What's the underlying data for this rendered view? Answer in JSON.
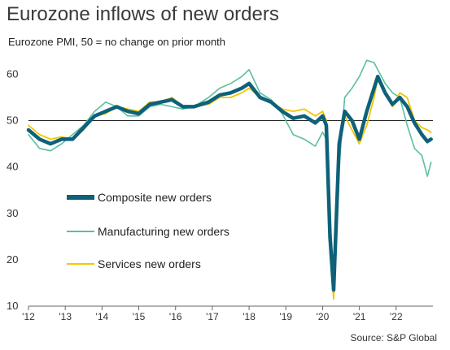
{
  "header": {
    "title": "Eurozone inflows of new orders",
    "subtitle": "Eurozone PMI, 50 = no change on prior month",
    "source": "Source: S&P Global"
  },
  "chart_data": {
    "type": "line",
    "title": "Eurozone inflows of new orders",
    "subtitle": "Eurozone PMI, 50 = no change on prior month",
    "xlabel": "",
    "ylabel": "",
    "ylim": [
      10,
      62
    ],
    "yticks": [
      10,
      20,
      30,
      40,
      50,
      60
    ],
    "xticks": [
      "'12",
      "'13",
      "'14",
      "'15",
      "'16",
      "'17",
      "'18",
      "'19",
      "'20",
      "'21",
      "'22"
    ],
    "reference_line": 50,
    "grid": false,
    "legend_position": "inside-left",
    "series": [
      {
        "name": "Composite new orders",
        "color": "#0e6179",
        "points": [
          [
            2012.0,
            48.0
          ],
          [
            2012.3,
            46.0
          ],
          [
            2012.6,
            45.0
          ],
          [
            2012.9,
            46.0
          ],
          [
            2013.2,
            46.0
          ],
          [
            2013.5,
            48.5
          ],
          [
            2013.8,
            51.0
          ],
          [
            2014.1,
            52.0
          ],
          [
            2014.4,
            53.0
          ],
          [
            2014.7,
            52.0
          ],
          [
            2015.0,
            51.5
          ],
          [
            2015.3,
            53.5
          ],
          [
            2015.6,
            54.0
          ],
          [
            2015.9,
            54.5
          ],
          [
            2016.2,
            53.0
          ],
          [
            2016.5,
            53.0
          ],
          [
            2016.9,
            54.0
          ],
          [
            2017.2,
            55.5
          ],
          [
            2017.5,
            56.0
          ],
          [
            2017.8,
            57.0
          ],
          [
            2018.0,
            58.0
          ],
          [
            2018.3,
            55.0
          ],
          [
            2018.6,
            54.0
          ],
          [
            2018.9,
            52.0
          ],
          [
            2019.2,
            50.5
          ],
          [
            2019.5,
            51.0
          ],
          [
            2019.8,
            49.5
          ],
          [
            2020.0,
            51.0
          ],
          [
            2020.1,
            49.0
          ],
          [
            2020.2,
            25.0
          ],
          [
            2020.3,
            13.5
          ],
          [
            2020.45,
            45.0
          ],
          [
            2020.6,
            52.0
          ],
          [
            2020.8,
            50.0
          ],
          [
            2021.0,
            46.0
          ],
          [
            2021.2,
            52.0
          ],
          [
            2021.4,
            57.0
          ],
          [
            2021.5,
            59.5
          ],
          [
            2021.7,
            56.0
          ],
          [
            2021.9,
            53.5
          ],
          [
            2022.1,
            55.0
          ],
          [
            2022.3,
            53.0
          ],
          [
            2022.5,
            49.5
          ],
          [
            2022.7,
            47.0
          ],
          [
            2022.85,
            45.5
          ],
          [
            2022.95,
            46.0
          ]
        ]
      },
      {
        "name": "Manufacturing new orders",
        "color": "#5bbf9f",
        "points": [
          [
            2012.0,
            47.0
          ],
          [
            2012.3,
            44.0
          ],
          [
            2012.6,
            43.5
          ],
          [
            2012.9,
            45.0
          ],
          [
            2013.2,
            47.0
          ],
          [
            2013.5,
            49.0
          ],
          [
            2013.8,
            52.0
          ],
          [
            2014.1,
            54.0
          ],
          [
            2014.4,
            53.0
          ],
          [
            2014.7,
            51.0
          ],
          [
            2015.0,
            51.0
          ],
          [
            2015.3,
            53.0
          ],
          [
            2015.6,
            53.5
          ],
          [
            2015.9,
            53.0
          ],
          [
            2016.2,
            52.5
          ],
          [
            2016.5,
            53.0
          ],
          [
            2016.9,
            55.0
          ],
          [
            2017.2,
            57.0
          ],
          [
            2017.5,
            58.0
          ],
          [
            2017.8,
            59.5
          ],
          [
            2018.0,
            61.0
          ],
          [
            2018.3,
            56.0
          ],
          [
            2018.6,
            54.5
          ],
          [
            2018.9,
            51.5
          ],
          [
            2019.2,
            47.0
          ],
          [
            2019.5,
            46.0
          ],
          [
            2019.8,
            44.5
          ],
          [
            2020.0,
            47.5
          ],
          [
            2020.1,
            46.0
          ],
          [
            2020.2,
            30.0
          ],
          [
            2020.3,
            15.0
          ],
          [
            2020.45,
            40.0
          ],
          [
            2020.6,
            55.0
          ],
          [
            2020.8,
            57.0
          ],
          [
            2021.0,
            59.5
          ],
          [
            2021.2,
            63.0
          ],
          [
            2021.4,
            62.5
          ],
          [
            2021.5,
            61.0
          ],
          [
            2021.7,
            58.0
          ],
          [
            2021.9,
            56.0
          ],
          [
            2022.1,
            55.0
          ],
          [
            2022.3,
            49.0
          ],
          [
            2022.5,
            44.0
          ],
          [
            2022.7,
            42.5
          ],
          [
            2022.85,
            38.0
          ],
          [
            2022.95,
            41.0
          ]
        ]
      },
      {
        "name": "Services new orders",
        "color": "#f5c400",
        "points": [
          [
            2012.0,
            49.0
          ],
          [
            2012.3,
            47.0
          ],
          [
            2012.6,
            46.0
          ],
          [
            2012.9,
            46.5
          ],
          [
            2013.2,
            46.0
          ],
          [
            2013.5,
            48.0
          ],
          [
            2013.8,
            51.0
          ],
          [
            2014.1,
            51.5
          ],
          [
            2014.4,
            53.0
          ],
          [
            2014.7,
            52.5
          ],
          [
            2015.0,
            52.0
          ],
          [
            2015.3,
            54.0
          ],
          [
            2015.6,
            54.0
          ],
          [
            2015.9,
            55.0
          ],
          [
            2016.2,
            53.0
          ],
          [
            2016.5,
            53.0
          ],
          [
            2016.9,
            53.5
          ],
          [
            2017.2,
            55.0
          ],
          [
            2017.5,
            55.0
          ],
          [
            2017.8,
            56.0
          ],
          [
            2018.0,
            57.0
          ],
          [
            2018.3,
            55.0
          ],
          [
            2018.6,
            54.0
          ],
          [
            2018.9,
            52.5
          ],
          [
            2019.2,
            52.0
          ],
          [
            2019.5,
            52.5
          ],
          [
            2019.8,
            51.0
          ],
          [
            2020.0,
            52.0
          ],
          [
            2020.1,
            50.0
          ],
          [
            2020.2,
            22.0
          ],
          [
            2020.3,
            11.5
          ],
          [
            2020.45,
            46.0
          ],
          [
            2020.6,
            51.0
          ],
          [
            2020.8,
            48.0
          ],
          [
            2021.0,
            45.0
          ],
          [
            2021.2,
            49.0
          ],
          [
            2021.4,
            55.0
          ],
          [
            2021.5,
            59.0
          ],
          [
            2021.7,
            56.0
          ],
          [
            2021.9,
            53.0
          ],
          [
            2022.1,
            56.0
          ],
          [
            2022.3,
            55.0
          ],
          [
            2022.5,
            50.0
          ],
          [
            2022.7,
            48.5
          ],
          [
            2022.85,
            48.0
          ],
          [
            2022.95,
            47.5
          ]
        ]
      }
    ]
  }
}
